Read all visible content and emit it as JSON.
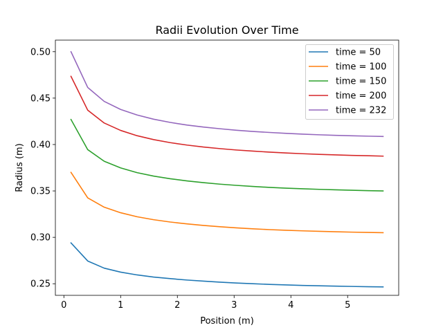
{
  "chart_data": {
    "type": "line",
    "title": "Radii Evolution Over Time",
    "xlabel": "Position (m)",
    "ylabel": "Radius (m)",
    "xlim": [
      -0.15,
      5.9
    ],
    "ylim": [
      0.2375,
      0.5125
    ],
    "xticks": [
      0,
      1,
      2,
      3,
      4,
      5
    ],
    "xtick_labels": [
      "0",
      "1",
      "2",
      "3",
      "4",
      "5"
    ],
    "yticks": [
      0.25,
      0.3,
      0.35,
      0.4,
      0.45,
      0.5
    ],
    "ytick_labels": [
      "0.25",
      "0.30",
      "0.35",
      "0.40",
      "0.45",
      "0.50"
    ],
    "grid": false,
    "legend_position": "top-right",
    "x": [
      0.125,
      0.42,
      0.71,
      1.0,
      1.29,
      1.58,
      1.875,
      2.17,
      2.46,
      2.75,
      3.04,
      3.33,
      3.625,
      3.92,
      4.21,
      4.5,
      4.79,
      5.08,
      5.375,
      5.625
    ],
    "series": [
      {
        "name": "time = 50",
        "color": "#1f77b4",
        "values": [
          0.294,
          0.2745,
          0.2668,
          0.2625,
          0.2595,
          0.2572,
          0.2555,
          0.254,
          0.2528,
          0.2517,
          0.2508,
          0.25,
          0.2493,
          0.2487,
          0.2482,
          0.2478,
          0.2474,
          0.2471,
          0.2468,
          0.2466
        ]
      },
      {
        "name": "time = 100",
        "color": "#ff7f0e",
        "values": [
          0.37,
          0.3425,
          0.3325,
          0.3265,
          0.3222,
          0.319,
          0.3165,
          0.3145,
          0.3128,
          0.3114,
          0.3102,
          0.3092,
          0.3083,
          0.3076,
          0.307,
          0.3065,
          0.306,
          0.3056,
          0.3053,
          0.305
        ]
      },
      {
        "name": "time = 150",
        "color": "#2ca02c",
        "values": [
          0.427,
          0.3945,
          0.382,
          0.3748,
          0.3697,
          0.366,
          0.3631,
          0.3608,
          0.3589,
          0.3573,
          0.356,
          0.3548,
          0.3538,
          0.353,
          0.3523,
          0.3517,
          0.3512,
          0.3507,
          0.3503,
          0.35
        ]
      },
      {
        "name": "time = 200",
        "color": "#d62728",
        "values": [
          0.4735,
          0.437,
          0.4232,
          0.4152,
          0.4095,
          0.4053,
          0.402,
          0.3994,
          0.3973,
          0.3956,
          0.3941,
          0.3929,
          0.3918,
          0.3909,
          0.3901,
          0.3894,
          0.3888,
          0.3883,
          0.3879,
          0.3875
        ]
      },
      {
        "name": "time = 232",
        "color": "#9467bd",
        "values": [
          0.5,
          0.4615,
          0.4465,
          0.4378,
          0.4318,
          0.4273,
          0.4238,
          0.421,
          0.4188,
          0.417,
          0.4154,
          0.4141,
          0.413,
          0.412,
          0.4112,
          0.4105,
          0.4099,
          0.4094,
          0.409,
          0.4087
        ]
      }
    ]
  }
}
